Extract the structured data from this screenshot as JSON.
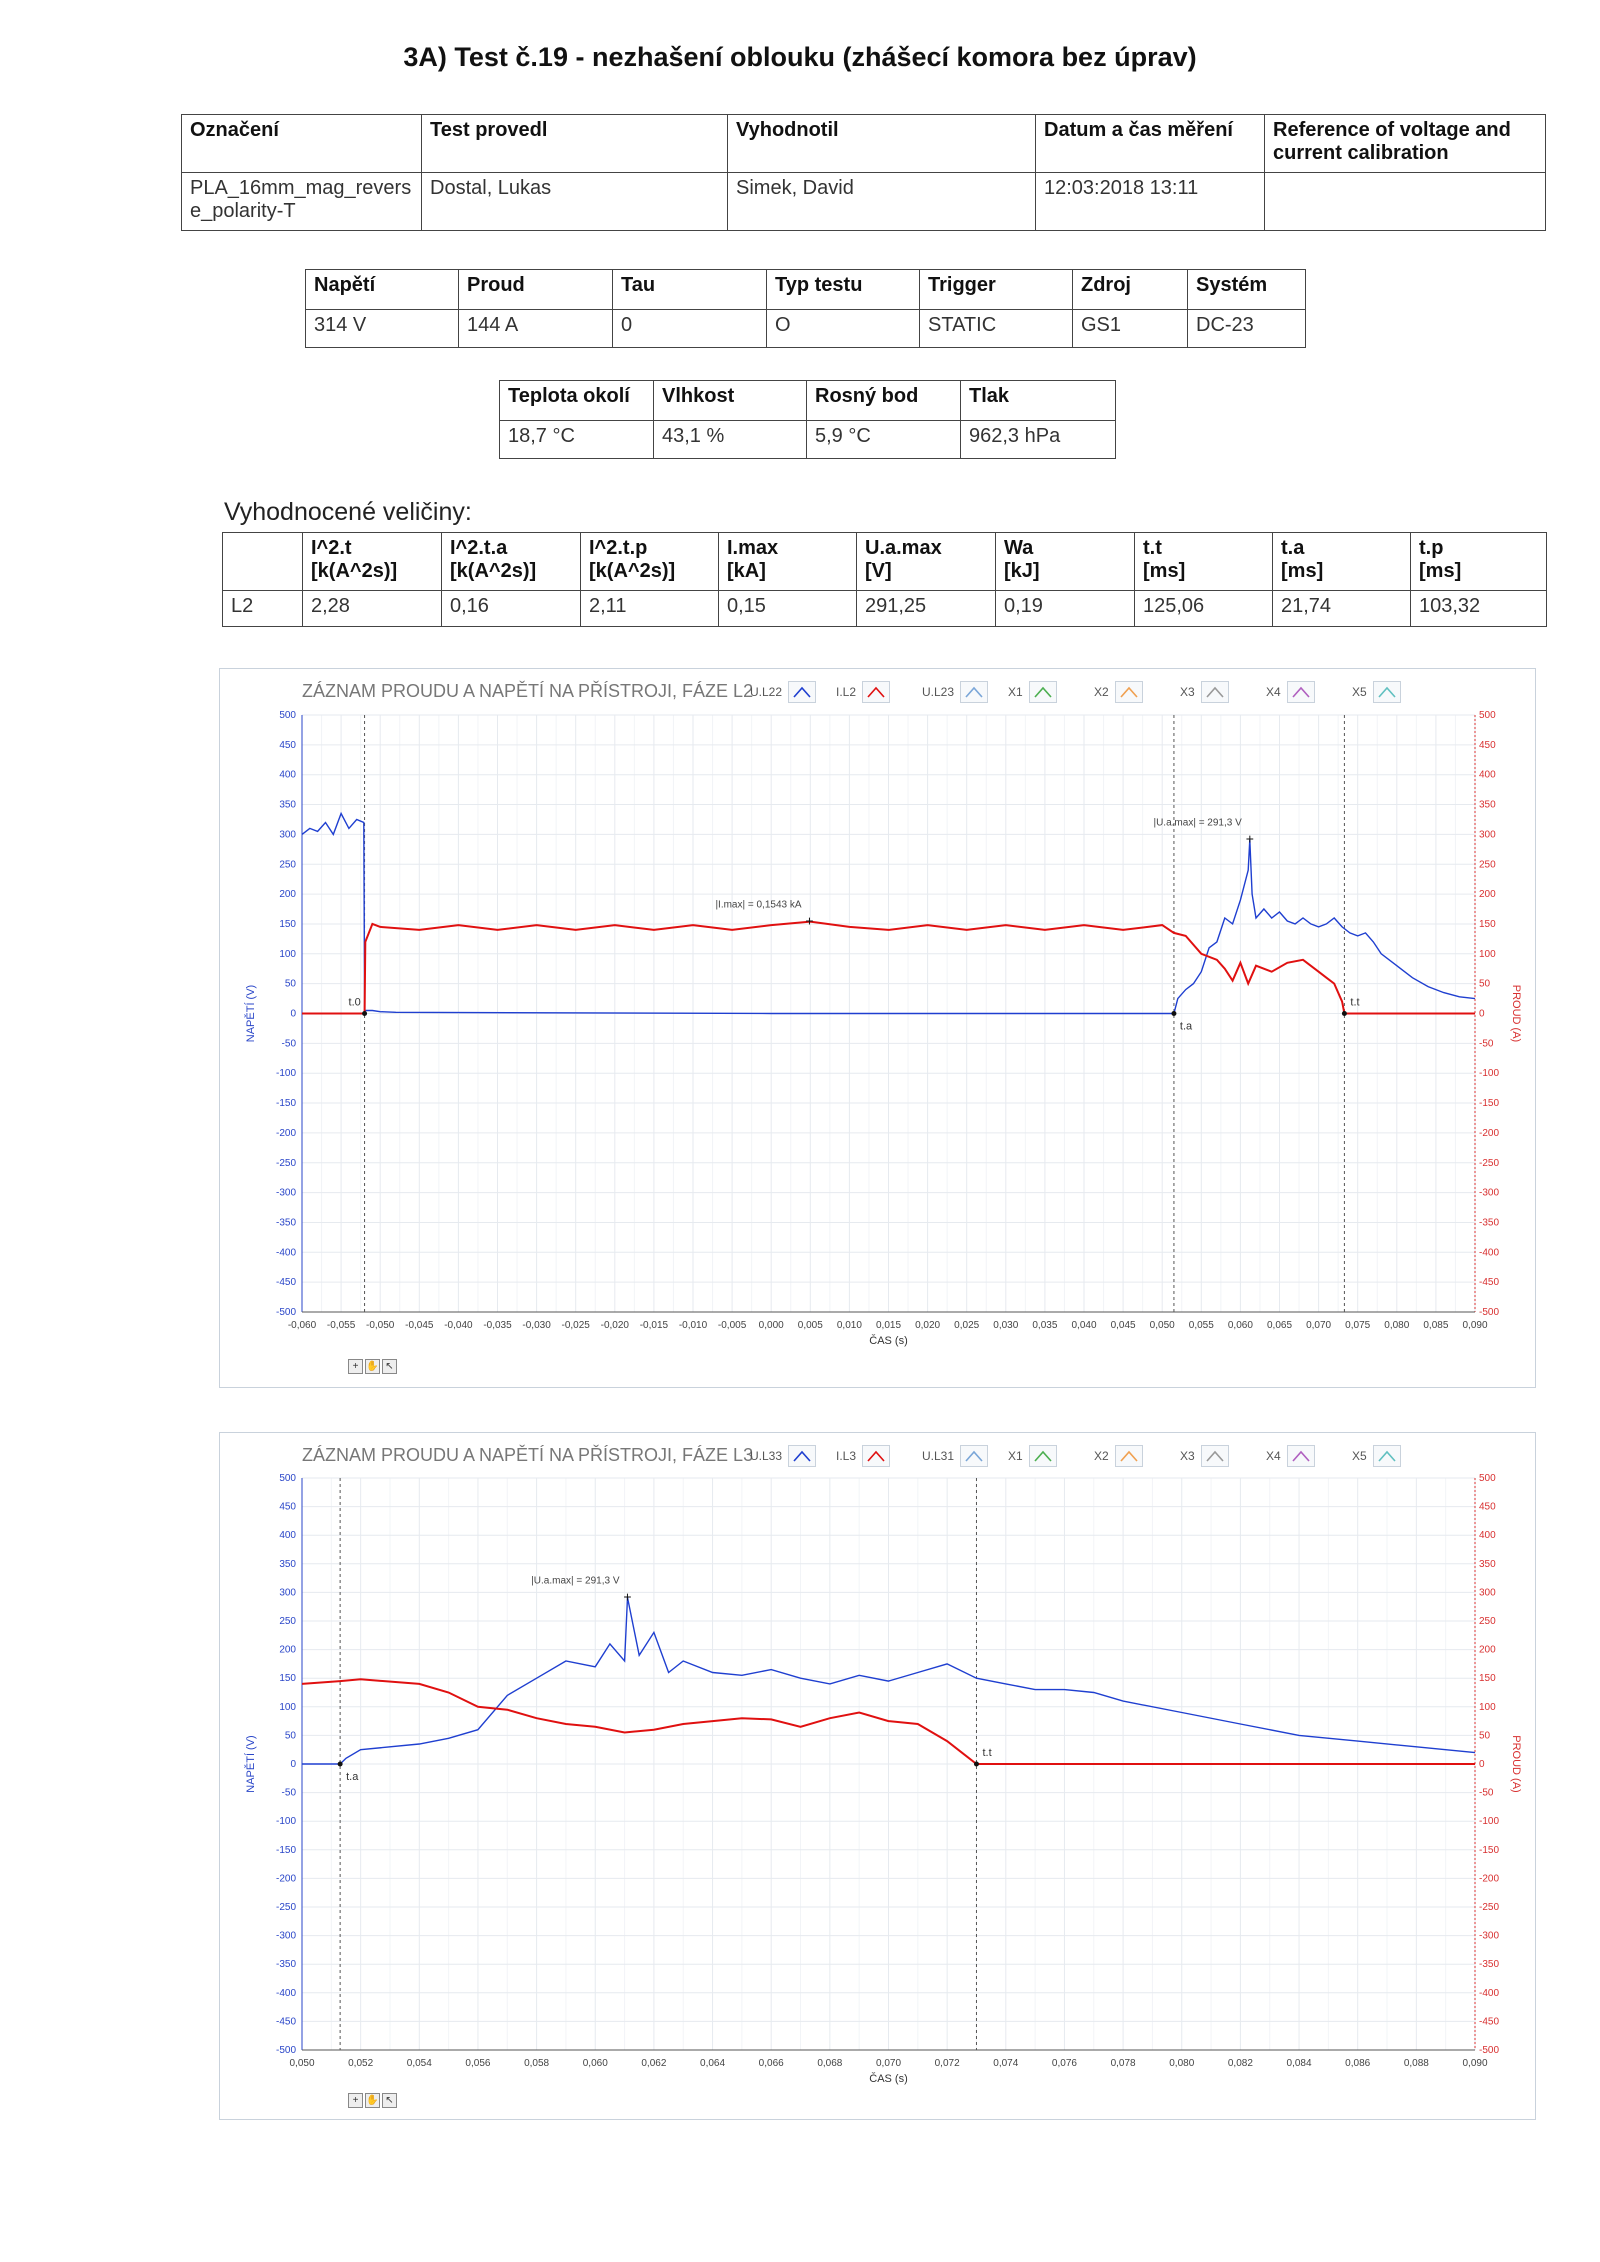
{
  "title": "3A) Test č.19 - nezhašení oblouku (zhášecí komora bez úprav)",
  "info_table": {
    "headers": [
      "Označení",
      "Test provedl",
      "Vyhodnotil",
      "Datum a čas měření",
      "Reference of voltage and current calibration"
    ],
    "values": [
      "PLA_16mm_mag_reverse_polarity-T",
      "Dostal, Lukas",
      "Simek, David",
      "12:03:2018 13:11",
      ""
    ]
  },
  "params_table": {
    "headers": [
      "Napětí",
      "Proud",
      "Tau",
      "Typ testu",
      "Trigger",
      "Zdroj",
      "Systém"
    ],
    "values": [
      "314 V",
      "144 A",
      "0",
      "O",
      "STATIC",
      "GS1",
      "DC-23"
    ]
  },
  "env_table": {
    "headers": [
      "Teplota okolí",
      "Vlhkost",
      "Rosný bod",
      "Tlak"
    ],
    "values": [
      "18,7 °C",
      "43,1 %",
      "5,9 °C",
      "962,3 hPa"
    ]
  },
  "results": {
    "label": "Vyhodnocené veličiny:",
    "headers": [
      {
        "name": "I^2.t",
        "unit": "[k(A^2s)]"
      },
      {
        "name": "I^2.t.a",
        "unit": "[k(A^2s)]"
      },
      {
        "name": "I^2.t.p",
        "unit": "[k(A^2s)]"
      },
      {
        "name": "I.max",
        "unit": "[kA]"
      },
      {
        "name": "U.a.max",
        "unit": "[V]"
      },
      {
        "name": "Wa",
        "unit": "[kJ]"
      },
      {
        "name": "t.t",
        "unit": "[ms]"
      },
      {
        "name": "t.a",
        "unit": "[ms]"
      },
      {
        "name": "t.p",
        "unit": "[ms]"
      }
    ],
    "row": [
      "L2",
      "2,28",
      "0,16",
      "2,11",
      "0,15",
      "291,25",
      "0,19",
      "125,06",
      "21,74",
      "103,32"
    ]
  },
  "colors": {
    "voltage": "#1f3fd0",
    "current": "#e01010",
    "grid": "#e6eaef",
    "axis_left": "#2a46c8",
    "axis_right": "#d83030"
  },
  "chart_data": [
    {
      "type": "line",
      "title": "ZÁZNAM PROUDU A NAPĚTÍ NA PŘÍSTROJI, FÁZE L2",
      "legend": [
        "U.L22",
        "I.L2",
        "U.L23",
        "X1",
        "X2",
        "X3",
        "X4",
        "X5"
      ],
      "legend_colors": [
        "#1f3fd0",
        "#e01010",
        "#7aa6d8",
        "#4caf50",
        "#f0a050",
        "#999999",
        "#b060c0",
        "#60c0c0"
      ],
      "xlabel": "ČAS (s)",
      "ylabel_left": "NAPĚTÍ (V)",
      "ylabel_right": "PROUD (A)",
      "xlim": [
        -0.06,
        0.09
      ],
      "ylim": [
        -500,
        500
      ],
      "xticks": [
        "-0,060",
        "-0,055",
        "-0,050",
        "-0,045",
        "-0,040",
        "-0,035",
        "-0,030",
        "-0,025",
        "-0,020",
        "-0,015",
        "-0,010",
        "-0,005",
        "0,000",
        "0,005",
        "0,010",
        "0,015",
        "0,020",
        "0,025",
        "0,030",
        "0,035",
        "0,040",
        "0,045",
        "0,050",
        "0,055",
        "0,060",
        "0,065",
        "0,070",
        "0,075",
        "0,080",
        "0,085",
        "0,090"
      ],
      "yticks": [
        "500",
        "450",
        "400",
        "350",
        "300",
        "250",
        "200",
        "150",
        "100",
        "50",
        "0",
        "-50",
        "-100",
        "-150",
        "-200",
        "-250",
        "-300",
        "-350",
        "-400",
        "-450",
        "-500"
      ],
      "markers": [
        {
          "label": "t.0",
          "x": -0.052,
          "y": 0
        },
        {
          "label": "t.a",
          "x": 0.0515,
          "y": 0
        },
        {
          "label": "t.t",
          "x": 0.0733,
          "y": 0
        }
      ],
      "annotations": [
        {
          "text": "|I.max| = 0,1543 kA",
          "x": 0.0049,
          "y": 154.3
        },
        {
          "text": "|U.a.max| = 291,3 V",
          "x": 0.0612,
          "y": 291.3
        }
      ],
      "series": [
        {
          "name": "U.L22",
          "points": [
            [
              -0.06,
              300
            ],
            [
              -0.059,
              310
            ],
            [
              -0.058,
              305
            ],
            [
              -0.057,
              320
            ],
            [
              -0.056,
              300
            ],
            [
              -0.055,
              335
            ],
            [
              -0.054,
              310
            ],
            [
              -0.053,
              325
            ],
            [
              -0.0521,
              320
            ],
            [
              -0.052,
              5
            ],
            [
              -0.051,
              5
            ],
            [
              -0.05,
              3
            ],
            [
              -0.048,
              2
            ],
            [
              0.0,
              0
            ],
            [
              0.03,
              0
            ],
            [
              0.0515,
              0
            ],
            [
              0.052,
              25
            ],
            [
              0.053,
              40
            ],
            [
              0.054,
              50
            ],
            [
              0.055,
              70
            ],
            [
              0.056,
              110
            ],
            [
              0.057,
              120
            ],
            [
              0.058,
              160
            ],
            [
              0.059,
              150
            ],
            [
              0.06,
              190
            ],
            [
              0.061,
              240
            ],
            [
              0.0612,
              291
            ],
            [
              0.0615,
              200
            ],
            [
              0.062,
              160
            ],
            [
              0.063,
              175
            ],
            [
              0.064,
              160
            ],
            [
              0.065,
              170
            ],
            [
              0.066,
              155
            ],
            [
              0.067,
              150
            ],
            [
              0.068,
              160
            ],
            [
              0.069,
              150
            ],
            [
              0.07,
              145
            ],
            [
              0.071,
              150
            ],
            [
              0.072,
              160
            ],
            [
              0.073,
              145
            ],
            [
              0.074,
              135
            ],
            [
              0.075,
              130
            ],
            [
              0.076,
              135
            ],
            [
              0.077,
              120
            ],
            [
              0.078,
              100
            ],
            [
              0.08,
              80
            ],
            [
              0.082,
              60
            ],
            [
              0.084,
              45
            ],
            [
              0.086,
              35
            ],
            [
              0.088,
              28
            ],
            [
              0.09,
              25
            ]
          ]
        },
        {
          "name": "I.L2",
          "points": [
            [
              -0.06,
              0
            ],
            [
              -0.052,
              0
            ],
            [
              -0.0519,
              120
            ],
            [
              -0.051,
              150
            ],
            [
              -0.05,
              145
            ],
            [
              -0.045,
              140
            ],
            [
              -0.04,
              148
            ],
            [
              -0.035,
              140
            ],
            [
              -0.03,
              148
            ],
            [
              -0.025,
              140
            ],
            [
              -0.02,
              148
            ],
            [
              -0.015,
              140
            ],
            [
              -0.01,
              148
            ],
            [
              -0.005,
              140
            ],
            [
              0.0,
              148
            ],
            [
              0.005,
              154
            ],
            [
              0.01,
              145
            ],
            [
              0.015,
              140
            ],
            [
              0.02,
              148
            ],
            [
              0.025,
              140
            ],
            [
              0.03,
              148
            ],
            [
              0.035,
              140
            ],
            [
              0.04,
              148
            ],
            [
              0.045,
              140
            ],
            [
              0.05,
              148
            ],
            [
              0.0515,
              135
            ],
            [
              0.053,
              130
            ],
            [
              0.055,
              100
            ],
            [
              0.057,
              90
            ],
            [
              0.058,
              75
            ],
            [
              0.059,
              55
            ],
            [
              0.06,
              85
            ],
            [
              0.061,
              50
            ],
            [
              0.062,
              80
            ],
            [
              0.064,
              70
            ],
            [
              0.066,
              85
            ],
            [
              0.068,
              90
            ],
            [
              0.07,
              70
            ],
            [
              0.071,
              60
            ],
            [
              0.072,
              50
            ],
            [
              0.073,
              20
            ],
            [
              0.0733,
              0
            ],
            [
              0.09,
              0
            ]
          ]
        }
      ]
    },
    {
      "type": "line",
      "title": "ZÁZNAM PROUDU A NAPĚTÍ NA PŘÍSTROJI, FÁZE L3",
      "legend": [
        "U.L33",
        "I.L3",
        "U.L31",
        "X1",
        "X2",
        "X3",
        "X4",
        "X5"
      ],
      "legend_colors": [
        "#1f3fd0",
        "#e01010",
        "#7aa6d8",
        "#4caf50",
        "#f0a050",
        "#999999",
        "#b060c0",
        "#60c0c0"
      ],
      "xlabel": "ČAS (s)",
      "ylabel_left": "NAPĚTÍ (V)",
      "ylabel_right": "PROUD (A)",
      "xlim": [
        0.05,
        0.09
      ],
      "ylim": [
        -500,
        500
      ],
      "xticks": [
        "0,050",
        "0,052",
        "0,054",
        "0,056",
        "0,058",
        "0,060",
        "0,062",
        "0,064",
        "0,066",
        "0,068",
        "0,070",
        "0,072",
        "0,074",
        "0,076",
        "0,078",
        "0,080",
        "0,082",
        "0,084",
        "0,086",
        "0,088",
        "0,090"
      ],
      "yticks": [
        "500",
        "450",
        "400",
        "350",
        "300",
        "250",
        "200",
        "150",
        "100",
        "50",
        "0",
        "-50",
        "-100",
        "-150",
        "-200",
        "-250",
        "-300",
        "-350",
        "-400",
        "-450",
        "-500"
      ],
      "markers": [
        {
          "label": "t.a",
          "x": 0.0513,
          "y": 0
        },
        {
          "label": "t.t",
          "x": 0.073,
          "y": 0
        }
      ],
      "annotations": [
        {
          "text": "|U.a.max| = 291,3 V",
          "x": 0.0611,
          "y": 291.3
        }
      ],
      "series": [
        {
          "name": "U.L33",
          "points": [
            [
              0.05,
              0
            ],
            [
              0.0513,
              0
            ],
            [
              0.0515,
              10
            ],
            [
              0.052,
              25
            ],
            [
              0.054,
              35
            ],
            [
              0.055,
              45
            ],
            [
              0.056,
              60
            ],
            [
              0.057,
              120
            ],
            [
              0.058,
              150
            ],
            [
              0.059,
              180
            ],
            [
              0.06,
              170
            ],
            [
              0.0605,
              210
            ],
            [
              0.061,
              180
            ],
            [
              0.0611,
              291
            ],
            [
              0.0615,
              190
            ],
            [
              0.062,
              230
            ],
            [
              0.0625,
              160
            ],
            [
              0.063,
              180
            ],
            [
              0.064,
              160
            ],
            [
              0.065,
              155
            ],
            [
              0.066,
              165
            ],
            [
              0.067,
              150
            ],
            [
              0.068,
              140
            ],
            [
              0.069,
              155
            ],
            [
              0.07,
              145
            ],
            [
              0.071,
              160
            ],
            [
              0.072,
              175
            ],
            [
              0.073,
              150
            ],
            [
              0.074,
              140
            ],
            [
              0.075,
              130
            ],
            [
              0.076,
              130
            ],
            [
              0.077,
              125
            ],
            [
              0.078,
              110
            ],
            [
              0.08,
              90
            ],
            [
              0.082,
              70
            ],
            [
              0.084,
              50
            ],
            [
              0.086,
              40
            ],
            [
              0.088,
              30
            ],
            [
              0.09,
              20
            ]
          ]
        },
        {
          "name": "I.L3",
          "points": [
            [
              0.05,
              140
            ],
            [
              0.0513,
              145
            ],
            [
              0.052,
              148
            ],
            [
              0.054,
              140
            ],
            [
              0.055,
              125
            ],
            [
              0.056,
              100
            ],
            [
              0.057,
              95
            ],
            [
              0.058,
              80
            ],
            [
              0.059,
              70
            ],
            [
              0.06,
              65
            ],
            [
              0.061,
              55
            ],
            [
              0.062,
              60
            ],
            [
              0.063,
              70
            ],
            [
              0.064,
              75
            ],
            [
              0.065,
              80
            ],
            [
              0.066,
              78
            ],
            [
              0.067,
              65
            ],
            [
              0.068,
              80
            ],
            [
              0.069,
              90
            ],
            [
              0.07,
              75
            ],
            [
              0.071,
              70
            ],
            [
              0.072,
              40
            ],
            [
              0.0725,
              20
            ],
            [
              0.073,
              0
            ],
            [
              0.09,
              0
            ]
          ]
        }
      ]
    }
  ]
}
